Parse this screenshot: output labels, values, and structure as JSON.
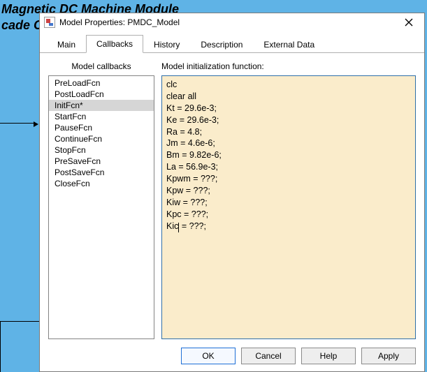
{
  "background": {
    "line1": "Magnetic DC Machine Module",
    "line2": "cade C"
  },
  "dialog": {
    "title": "Model Properties: PMDC_Model",
    "tabs": [
      "Main",
      "Callbacks",
      "History",
      "Description",
      "External Data"
    ],
    "activeTabIndex": 1,
    "callbacks": {
      "header": "Model callbacks",
      "items": [
        {
          "label": "PreLoadFcn",
          "selected": false
        },
        {
          "label": "PostLoadFcn",
          "selected": false
        },
        {
          "label": "InitFcn*",
          "selected": true
        },
        {
          "label": "StartFcn",
          "selected": false
        },
        {
          "label": "PauseFcn",
          "selected": false
        },
        {
          "label": "ContinueFcn",
          "selected": false
        },
        {
          "label": "StopFcn",
          "selected": false
        },
        {
          "label": "PreSaveFcn",
          "selected": false
        },
        {
          "label": "PostSaveFcn",
          "selected": false
        },
        {
          "label": "CloseFcn",
          "selected": false
        }
      ]
    },
    "editor": {
      "header": "Model initialization function:",
      "background": "#faeccb",
      "border": "#2f6fa8",
      "lines": [
        "clc",
        "clear all",
        "Kt = 29.6e-3;",
        "Ke = 29.6e-3;",
        "Ra = 4.8;",
        "Jm = 4.6e-6;",
        "Bm = 9.82e-6;",
        "La = 56.9e-3;",
        "Kpwm = ???;",
        "Kpw = ???;",
        "Kiw = ???;",
        "Kpc = ???;"
      ],
      "lastLine": {
        "pre": "Kic",
        "post": " = ???;"
      }
    },
    "buttons": {
      "ok": "OK",
      "cancel": "Cancel",
      "help": "Help",
      "apply": "Apply"
    }
  }
}
